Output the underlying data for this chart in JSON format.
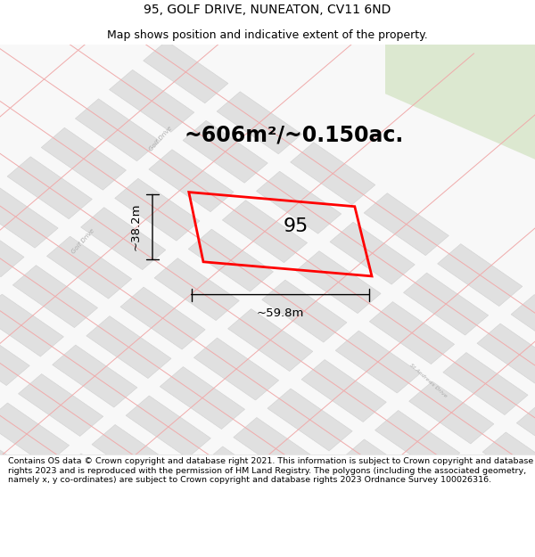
{
  "title_line1": "95, GOLF DRIVE, NUNEATON, CV11 6ND",
  "title_line2": "Map shows position and indicative extent of the property.",
  "area_text": "~606m²/~0.150ac.",
  "plot_number": "95",
  "dim_width": "~59.8m",
  "dim_height": "~38.2m",
  "footer_text": "Contains OS data © Crown copyright and database right 2021. This information is subject to Crown copyright and database rights 2023 and is reproduced with the permission of HM Land Registry. The polygons (including the associated geometry, namely x, y co-ordinates) are subject to Crown copyright and database rights 2023 Ordnance Survey 100026316.",
  "street_color": "#f0aaaa",
  "street_color2": "#e89898",
  "block_color": "#e0e0e0",
  "block_edge": "#d0d0d0",
  "plot_color": "#ff0000",
  "plot_lw": 2.0,
  "title_fontsize": 10,
  "subtitle_fontsize": 9,
  "area_fontsize": 17,
  "label_fontsize": 16,
  "dim_fontsize": 9.5,
  "footer_fontsize": 6.8,
  "green_color": "#dce8d0",
  "map_bg": "#f8f8f8"
}
